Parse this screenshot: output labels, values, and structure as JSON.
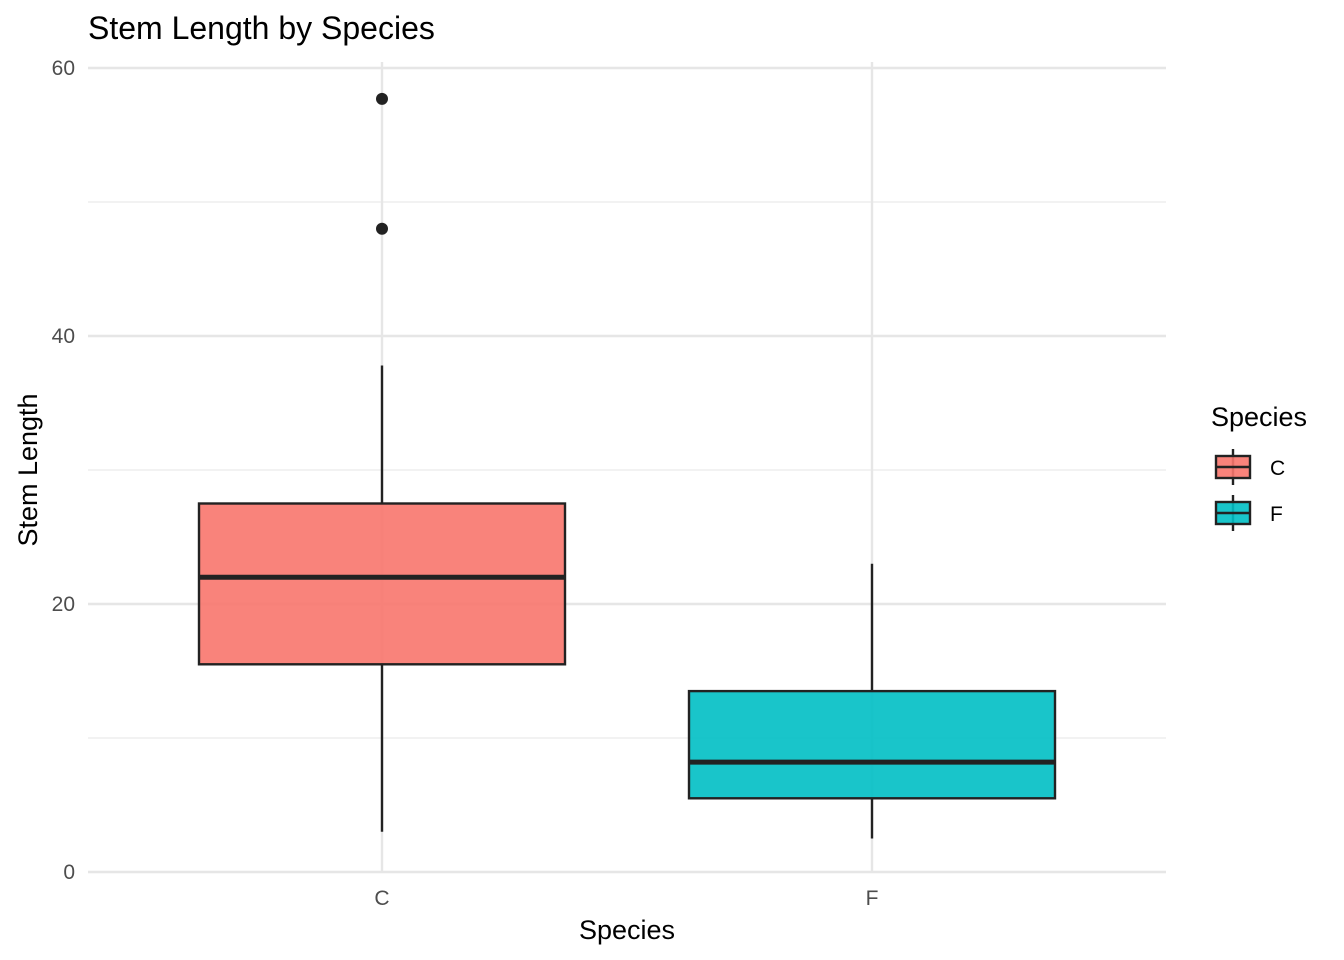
{
  "chart_data": {
    "type": "boxplot",
    "title": "Stem Length by Species",
    "xlabel": "Species",
    "ylabel": "Stem Length",
    "ylim": [
      0,
      60
    ],
    "yticks": [
      0,
      20,
      40,
      60
    ],
    "grid": true,
    "categories": [
      "C",
      "F"
    ],
    "boxes": [
      {
        "category": "C",
        "whisker_low": 3.0,
        "q1": 15.5,
        "median": 22.0,
        "q3": 27.5,
        "whisker_high": 37.8,
        "outliers": [
          48.0,
          57.7
        ],
        "color": "#F8766D"
      },
      {
        "category": "F",
        "whisker_low": 2.5,
        "q1": 5.5,
        "median": 8.2,
        "q3": 13.5,
        "whisker_high": 23.0,
        "outliers": [],
        "color": "#00BFC4"
      }
    ],
    "legend": {
      "title": "Species",
      "placement": "right",
      "items": [
        {
          "label": "C",
          "color": "#F8766D"
        },
        {
          "label": "F",
          "color": "#00BFC4"
        }
      ]
    }
  }
}
